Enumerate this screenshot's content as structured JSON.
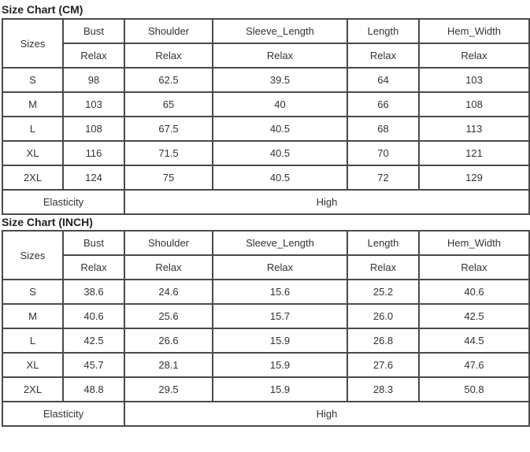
{
  "tables": [
    {
      "title": "Size Chart (CM)",
      "sizes_label": "Sizes",
      "columns": [
        "Bust",
        "Shoulder",
        "Sleeve_Length",
        "Length",
        "Hem_Width"
      ],
      "fit": [
        "Relax",
        "Relax",
        "Relax",
        "Relax",
        "Relax"
      ],
      "rows": [
        {
          "size": "S",
          "values": [
            "98",
            "62.5",
            "39.5",
            "64",
            "103"
          ]
        },
        {
          "size": "M",
          "values": [
            "103",
            "65",
            "40",
            "66",
            "108"
          ]
        },
        {
          "size": "L",
          "values": [
            "108",
            "67.5",
            "40.5",
            "68",
            "113"
          ]
        },
        {
          "size": "XL",
          "values": [
            "116",
            "71.5",
            "40.5",
            "70",
            "121"
          ]
        },
        {
          "size": "2XL",
          "values": [
            "124",
            "75",
            "40.5",
            "72",
            "129"
          ]
        }
      ],
      "elasticity_label": "Elasticity",
      "elasticity_value": "High"
    },
    {
      "title": "Size Chart (INCH)",
      "sizes_label": "Sizes",
      "columns": [
        "Bust",
        "Shoulder",
        "Sleeve_Length",
        "Length",
        "Hem_Width"
      ],
      "fit": [
        "Relax",
        "Relax",
        "Relax",
        "Relax",
        "Relax"
      ],
      "rows": [
        {
          "size": "S",
          "values": [
            "38.6",
            "24.6",
            "15.6",
            "25.2",
            "40.6"
          ]
        },
        {
          "size": "M",
          "values": [
            "40.6",
            "25.6",
            "15.7",
            "26.0",
            "42.5"
          ]
        },
        {
          "size": "L",
          "values": [
            "42.5",
            "26.6",
            "15.9",
            "26.8",
            "44.5"
          ]
        },
        {
          "size": "XL",
          "values": [
            "45.7",
            "28.1",
            "15.9",
            "27.6",
            "47.6"
          ]
        },
        {
          "size": "2XL",
          "values": [
            "48.8",
            "29.5",
            "15.9",
            "28.3",
            "50.8"
          ]
        }
      ],
      "elasticity_label": "Elasticity",
      "elasticity_value": "High"
    }
  ]
}
